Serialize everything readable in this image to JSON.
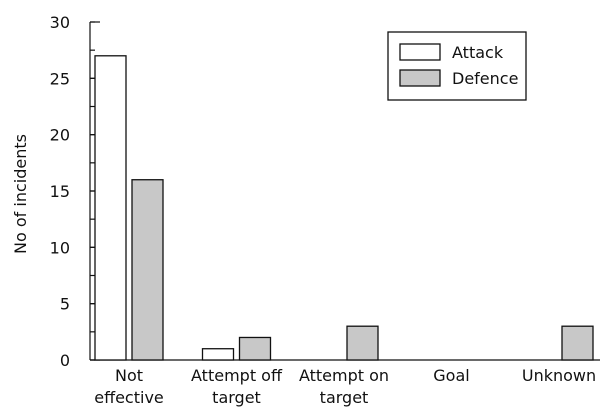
{
  "chart_data": {
    "type": "bar",
    "title": "",
    "xlabel": "",
    "ylabel": "No of incidents",
    "ylim": [
      0,
      30
    ],
    "yticks": [
      0,
      5,
      10,
      15,
      20,
      25,
      30
    ],
    "minor_step": 2.5,
    "grid": false,
    "legend_position": "top-right",
    "categories": [
      [
        "Not",
        "effective"
      ],
      [
        "Attempt off",
        "target"
      ],
      [
        "Attempt on",
        "target"
      ],
      [
        "Goal"
      ],
      [
        "Unknown"
      ]
    ],
    "series": [
      {
        "name": "Attack",
        "color": "#ffffff",
        "values": [
          27,
          1,
          0,
          0,
          0
        ]
      },
      {
        "name": "Defence",
        "color": "#c8c8c8",
        "values": [
          16,
          2,
          3,
          0,
          3
        ]
      }
    ]
  }
}
